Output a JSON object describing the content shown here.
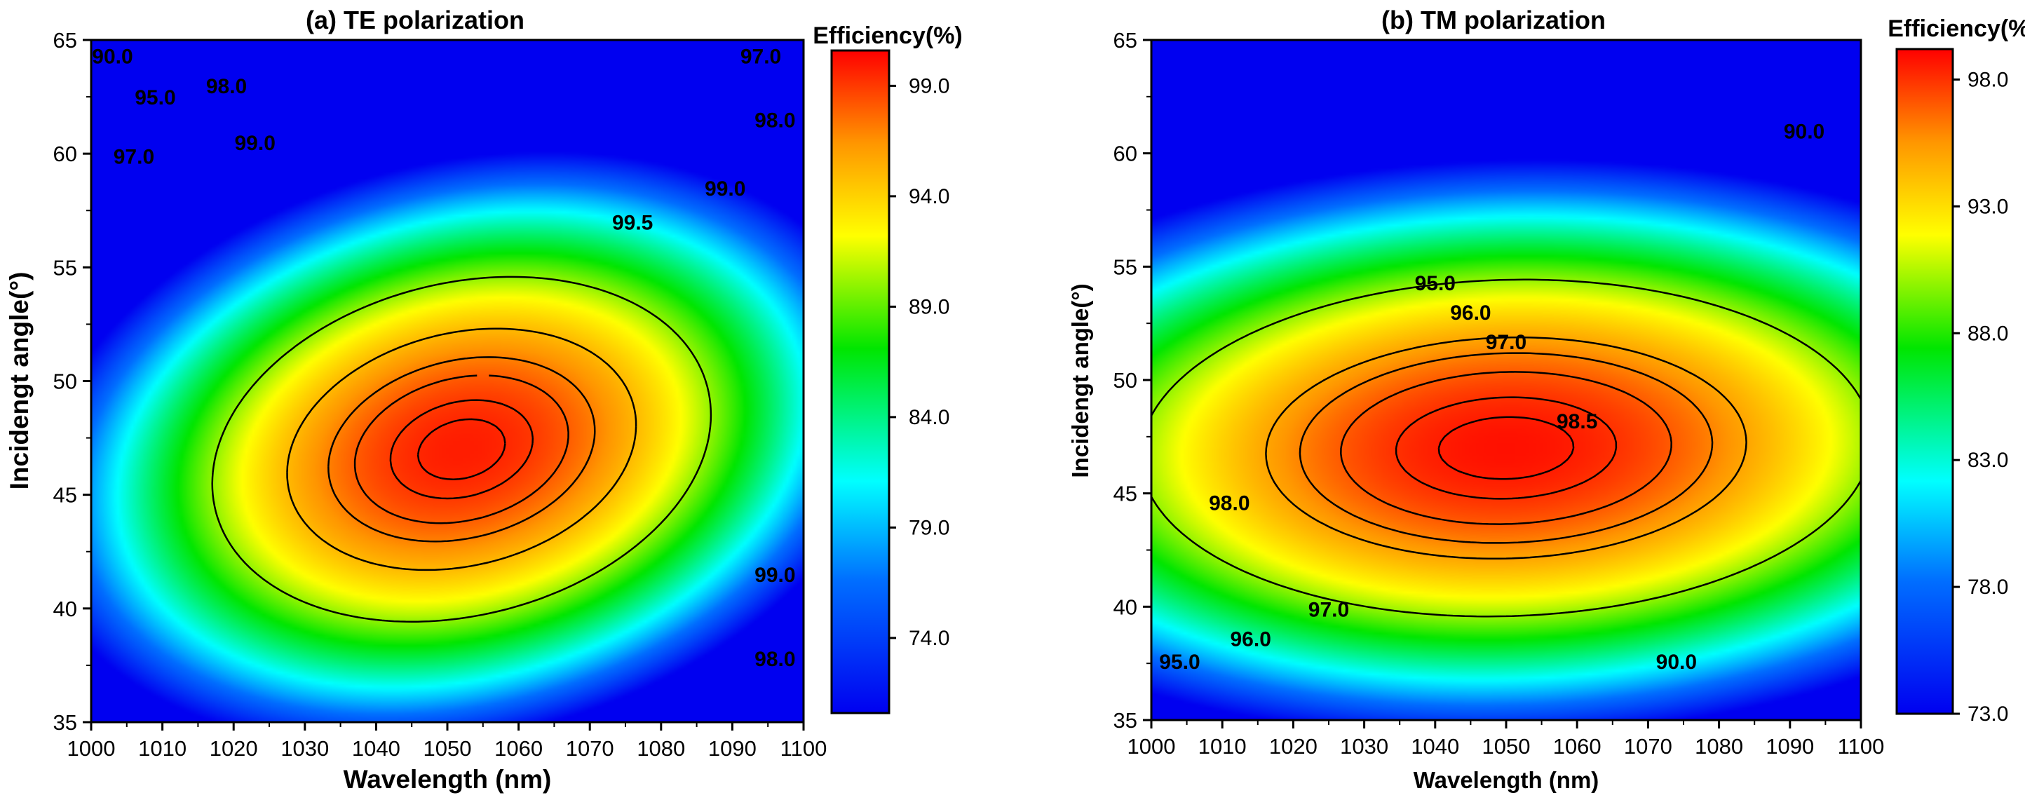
{
  "chart_data": [
    {
      "type": "heatmap",
      "title": "(a) TE polarization",
      "xlabel": "Wavelength (nm)",
      "ylabel": "Incidengt angle(°)",
      "xlim": [
        1000,
        1100
      ],
      "ylim": [
        35,
        65
      ],
      "x_ticks": [
        "1000",
        "1010",
        "1020",
        "1030",
        "1040",
        "1050",
        "1060",
        "1070",
        "1080",
        "1090",
        "1100"
      ],
      "y_ticks": [
        "35",
        "40",
        "45",
        "50",
        "55",
        "60",
        "65"
      ],
      "colorbar": {
        "title": "Efficiency(%)",
        "range": [
          70.6,
          100.6
        ],
        "ticks": [
          "74.0",
          "79.0",
          "84.0",
          "89.0",
          "94.0",
          "99.0"
        ]
      },
      "model": {
        "peak": 99.8,
        "center": [
          1052,
          47
        ],
        "scale": [
          60,
          13
        ],
        "tilt": 0.4
      },
      "contours": [
        {
          "level": 99.5,
          "labels": [
            {
              "text": "99.5",
              "x": 1076,
              "y": 57
            }
          ]
        },
        {
          "level": 99.0,
          "labels": [
            {
              "text": "99.0",
              "x": 1023,
              "y": 60.5
            },
            {
              "text": "99.0",
              "x": 1089,
              "y": 58.5
            },
            {
              "text": "99.0",
              "x": 1096,
              "y": 41.5
            }
          ]
        },
        {
          "level": 98.0,
          "labels": [
            {
              "text": "98.0",
              "x": 1019,
              "y": 63
            },
            {
              "text": "98.0",
              "x": 1096,
              "y": 61.5
            },
            {
              "text": "98.0",
              "x": 1096,
              "y": 37.8
            }
          ]
        },
        {
          "level": 97.0,
          "labels": [
            {
              "text": "97.0",
              "x": 1006,
              "y": 59.9
            },
            {
              "text": "97.0",
              "x": 1094,
              "y": 64.3
            }
          ]
        },
        {
          "level": 95.0,
          "labels": [
            {
              "text": "95.0",
              "x": 1009,
              "y": 62.5
            }
          ]
        },
        {
          "level": 90.0,
          "labels": [
            {
              "text": "90.0",
              "x": 1003,
              "y": 64.3
            }
          ]
        }
      ]
    },
    {
      "type": "heatmap",
      "title": "(b) TM polarization",
      "xlabel": "Wavelength (nm)",
      "ylabel": "Incidengt angle(°)",
      "xlim": [
        1000,
        1100
      ],
      "ylim": [
        35,
        65
      ],
      "x_ticks": [
        "1000",
        "1010",
        "1020",
        "1030",
        "1040",
        "1050",
        "1060",
        "1070",
        "1080",
        "1090",
        "1100"
      ],
      "y_ticks": [
        "35",
        "40",
        "45",
        "50",
        "55",
        "60",
        "65"
      ],
      "colorbar": {
        "title": "Efficiency(%)",
        "range": [
          73.0,
          99.2
        ],
        "ticks": [
          "73.0",
          "78.0",
          "83.0",
          "88.0",
          "93.0",
          "98.0"
        ]
      },
      "model": {
        "peak": 98.8,
        "center": [
          1050,
          47
        ],
        "scale": [
          95,
          13.7
        ],
        "tilt": 0.1
      },
      "contours": [
        {
          "level": 98.5,
          "labels": [
            {
              "text": "98.5",
              "x": 1060,
              "y": 48.2
            }
          ]
        },
        {
          "level": 98.0,
          "labels": [
            {
              "text": "98.0",
              "x": 1011,
              "y": 44.6
            }
          ]
        },
        {
          "level": 97.0,
          "labels": [
            {
              "text": "97.0",
              "x": 1050,
              "y": 51.7
            },
            {
              "text": "97.0",
              "x": 1025,
              "y": 39.9
            }
          ]
        },
        {
          "level": 96.0,
          "labels": [
            {
              "text": "96.0",
              "x": 1045,
              "y": 53
            },
            {
              "text": "96.0",
              "x": 1014,
              "y": 38.6
            }
          ]
        },
        {
          "level": 95.0,
          "labels": [
            {
              "text": "95.0",
              "x": 1040,
              "y": 54.3
            },
            {
              "text": "95.0",
              "x": 1004,
              "y": 37.6
            }
          ]
        },
        {
          "level": 90.0,
          "labels": [
            {
              "text": "90.0",
              "x": 1092,
              "y": 61
            },
            {
              "text": "90.0",
              "x": 1074,
              "y": 37.6
            }
          ]
        }
      ]
    }
  ]
}
